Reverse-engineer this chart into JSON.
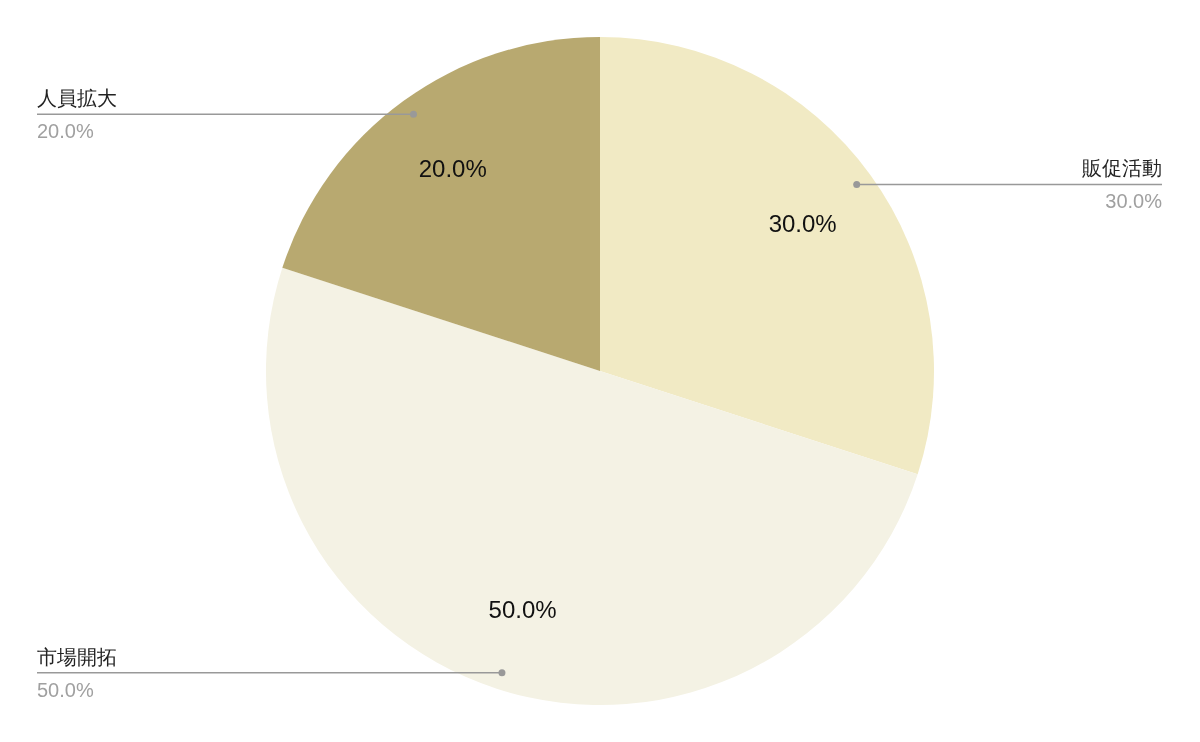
{
  "chart_data": {
    "type": "pie",
    "categories": [
      "販促活動",
      "市場開拓",
      "人員拡大"
    ],
    "values": [
      30,
      50,
      20
    ],
    "colors": [
      "#f1eac4",
      "#f4f2e4",
      "#b8a970"
    ],
    "value_labels": [
      "30.0%",
      "50.0%",
      "20.0%"
    ]
  }
}
